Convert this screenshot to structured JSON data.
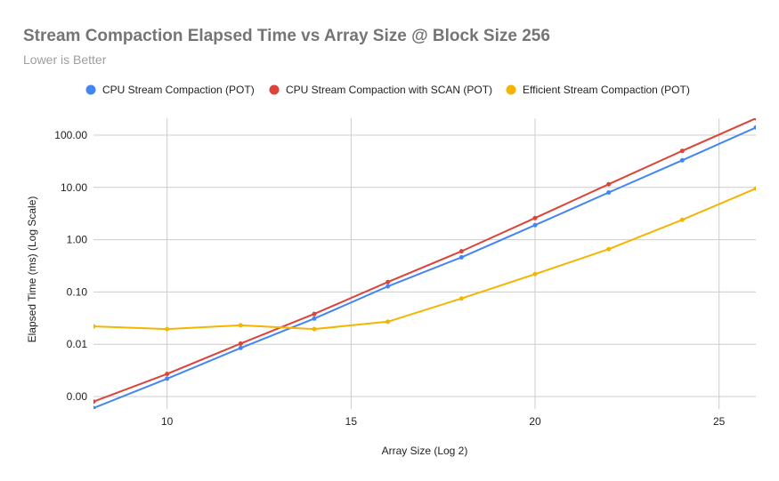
{
  "chart_data": {
    "type": "line",
    "title": "Stream Compaction Elapsed Time vs Array Size @ Block Size 256",
    "subtitle": "Lower is Better",
    "xlabel": "Array Size (Log 2)",
    "ylabel": "Elapsed Time (ms) (Log Scale)",
    "xlim": [
      8,
      26
    ],
    "x_ticks": [
      10,
      15,
      20,
      25
    ],
    "y_scale": "log",
    "y_ticks": [
      {
        "value": 0.001,
        "label": "0.00"
      },
      {
        "value": 0.01,
        "label": "0.01"
      },
      {
        "value": 0.1,
        "label": "0.10"
      },
      {
        "value": 1,
        "label": "1.00"
      },
      {
        "value": 10,
        "label": "10.00"
      },
      {
        "value": 100,
        "label": "100.00"
      }
    ],
    "ylim": [
      0.0006,
      200
    ],
    "grid": true,
    "legend_position": "top",
    "x": [
      8,
      10,
      12,
      14,
      16,
      18,
      20,
      22,
      24,
      26
    ],
    "series": [
      {
        "name": "CPU Stream Compaction (POT)",
        "color": "#4285f4",
        "values": [
          0.0006,
          0.0022,
          0.0085,
          0.031,
          0.128,
          0.46,
          1.9,
          8.0,
          33,
          140
        ]
      },
      {
        "name": "CPU Stream Compaction with SCAN (POT)",
        "color": "#db4437",
        "values": [
          0.0008,
          0.0027,
          0.0103,
          0.038,
          0.155,
          0.6,
          2.6,
          11.5,
          50,
          210
        ]
      },
      {
        "name": "Efficient Stream Compaction (POT)",
        "color": "#f4b400",
        "values": [
          0.022,
          0.0195,
          0.023,
          0.0195,
          0.027,
          0.075,
          0.22,
          0.66,
          2.4,
          9.5
        ]
      }
    ]
  }
}
